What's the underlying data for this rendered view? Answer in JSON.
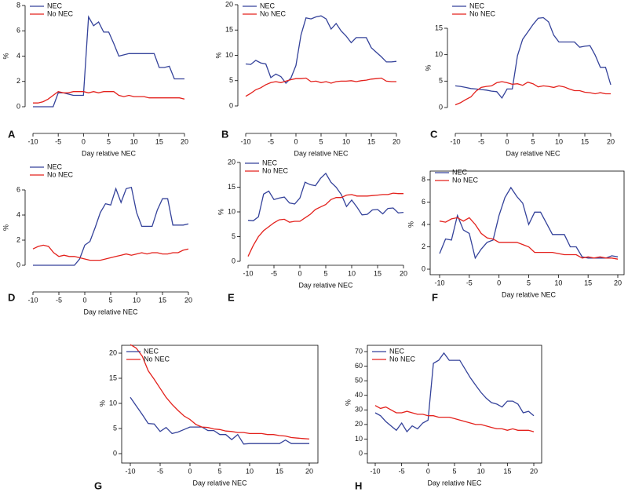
{
  "chart_data": [
    {
      "type": "line",
      "panel": "A",
      "xlabel": "Day relative NEC",
      "ylabel": "%",
      "legend": "upper left",
      "x": [
        -10,
        -9,
        -8,
        -7,
        -6,
        -5,
        -4,
        -3,
        -2,
        -1,
        0,
        1,
        2,
        3,
        4,
        5,
        6,
        7,
        8,
        9,
        10,
        11,
        12,
        13,
        14,
        15,
        16,
        17,
        18,
        19,
        20
      ],
      "xlim": [
        -10,
        20
      ],
      "xticks": [
        -10,
        -5,
        0,
        5,
        10,
        15,
        20
      ],
      "ylim": [
        0,
        8
      ],
      "yticks": [
        0,
        2,
        4,
        6,
        8
      ],
      "series": [
        {
          "name": "NEC",
          "color": "#34429a",
          "values": [
            0,
            0,
            0,
            0,
            0,
            1.1,
            1.1,
            1.0,
            0.9,
            0.9,
            0.9,
            7.1,
            6.4,
            6.7,
            5.9,
            5.9,
            5.0,
            4.0,
            4.1,
            4.2,
            4.2,
            4.2,
            4.2,
            4.2,
            4.2,
            3.1,
            3.1,
            3.2,
            2.2,
            2.2,
            2.2
          ]
        },
        {
          "name": "No NEC",
          "color": "#e3211c",
          "values": [
            0.3,
            0.3,
            0.4,
            0.6,
            0.9,
            1.2,
            1.1,
            1.1,
            1.2,
            1.2,
            1.2,
            1.1,
            1.2,
            1.1,
            1.2,
            1.2,
            1.2,
            0.9,
            0.8,
            0.9,
            0.8,
            0.8,
            0.8,
            0.7,
            0.7,
            0.7,
            0.7,
            0.7,
            0.7,
            0.7,
            0.6
          ]
        }
      ]
    },
    {
      "type": "line",
      "panel": "B",
      "xlabel": "Day relative NEC",
      "ylabel": "%",
      "legend": "upper left",
      "x": [
        -10,
        -9,
        -8,
        -7,
        -6,
        -5,
        -4,
        -3,
        -2,
        -1,
        0,
        1,
        2,
        3,
        4,
        5,
        6,
        7,
        8,
        9,
        10,
        11,
        12,
        13,
        14,
        15,
        16,
        17,
        18,
        19,
        20
      ],
      "xlim": [
        -10,
        20
      ],
      "xticks": [
        -10,
        -5,
        0,
        5,
        10,
        15,
        20
      ],
      "ylim": [
        0,
        20
      ],
      "yticks": [
        0,
        5,
        10,
        15,
        20
      ],
      "series": [
        {
          "name": "NEC",
          "color": "#34429a",
          "values": [
            8.3,
            8.2,
            9.0,
            8.5,
            8.3,
            5.6,
            6.3,
            5.8,
            4.5,
            5.5,
            8.0,
            14.0,
            17.4,
            17.2,
            17.6,
            17.8,
            17.2,
            15.2,
            16.3,
            14.8,
            13.8,
            12.5,
            13.5,
            13.5,
            13.5,
            11.5,
            10.6,
            9.7,
            8.7,
            8.7,
            8.8
          ]
        },
        {
          "name": "No NEC",
          "color": "#e3211c",
          "values": [
            1.9,
            2.5,
            3.2,
            3.6,
            4.2,
            4.6,
            4.8,
            4.6,
            4.9,
            5.2,
            5.4,
            5.4,
            5.5,
            4.8,
            4.9,
            4.6,
            4.8,
            4.5,
            4.8,
            4.9,
            4.9,
            5.0,
            4.8,
            5.0,
            5.1,
            5.3,
            5.4,
            5.5,
            4.9,
            4.8,
            4.8
          ]
        }
      ]
    },
    {
      "type": "line",
      "panel": "C",
      "xlabel": "Day relative NEC",
      "ylabel": "%",
      "legend": "upper left",
      "x": [
        -10,
        -9,
        -8,
        -7,
        -6,
        -5,
        -4,
        -3,
        -2,
        -1,
        0,
        1,
        2,
        3,
        4,
        5,
        6,
        7,
        8,
        9,
        10,
        11,
        12,
        13,
        14,
        15,
        16,
        17,
        18,
        19,
        20
      ],
      "xlim": [
        -10,
        20
      ],
      "xticks": [
        -10,
        -5,
        0,
        5,
        10,
        15,
        20
      ],
      "ylim": [
        0,
        15
      ],
      "yticks": [
        0,
        5,
        10,
        15
      ],
      "series": [
        {
          "name": "NEC",
          "color": "#34429a",
          "values": [
            4.1,
            4.0,
            3.8,
            3.6,
            3.5,
            3.4,
            3.3,
            3.1,
            3.0,
            1.8,
            3.5,
            3.5,
            9.8,
            12.9,
            14.3,
            15.7,
            16.9,
            17.0,
            16.2,
            13.7,
            12.4,
            12.4,
            12.4,
            12.4,
            11.4,
            11.6,
            11.7,
            9.9,
            7.6,
            7.6,
            4.3
          ]
        },
        {
          "name": "No NEC",
          "color": "#e3211c",
          "values": [
            0.5,
            0.9,
            1.5,
            2.0,
            3.1,
            3.8,
            4.0,
            4.1,
            4.7,
            4.9,
            4.7,
            4.4,
            4.5,
            4.2,
            4.8,
            4.5,
            3.9,
            4.1,
            4.0,
            3.8,
            4.1,
            3.9,
            3.5,
            3.2,
            3.2,
            2.9,
            2.8,
            2.6,
            2.8,
            2.6,
            2.6
          ]
        }
      ]
    },
    {
      "type": "line",
      "panel": "D",
      "xlabel": "Day relative NEC",
      "ylabel": "%",
      "legend": "upper left",
      "x": [
        -10,
        -9,
        -8,
        -7,
        -6,
        -5,
        -4,
        -3,
        -2,
        -1,
        0,
        1,
        2,
        3,
        4,
        5,
        6,
        7,
        8,
        9,
        10,
        11,
        12,
        13,
        14,
        15,
        16,
        17,
        18,
        19,
        20
      ],
      "xlim": [
        -10,
        20
      ],
      "xticks": [
        -10,
        -5,
        0,
        5,
        10,
        15,
        20
      ],
      "ylim": [
        0,
        6
      ],
      "yticks": [
        0,
        2,
        4,
        6
      ],
      "series": [
        {
          "name": "NEC",
          "color": "#34429a",
          "values": [
            0,
            0,
            0,
            0,
            0,
            0,
            0,
            0,
            0,
            0.5,
            1.6,
            1.9,
            3.0,
            4.2,
            4.9,
            4.8,
            6.1,
            5.0,
            6.1,
            6.2,
            4.2,
            3.1,
            3.1,
            3.1,
            4.4,
            5.3,
            5.3,
            3.2,
            3.2,
            3.2,
            3.3
          ]
        },
        {
          "name": "No NEC",
          "color": "#e3211c",
          "values": [
            1.3,
            1.5,
            1.6,
            1.5,
            1.0,
            0.7,
            0.8,
            0.7,
            0.7,
            0.6,
            0.5,
            0.4,
            0.4,
            0.4,
            0.5,
            0.6,
            0.7,
            0.8,
            0.9,
            0.8,
            0.9,
            1.0,
            0.9,
            1.0,
            1.0,
            0.9,
            0.9,
            1.0,
            1.0,
            1.2,
            1.3
          ]
        }
      ]
    },
    {
      "type": "line",
      "panel": "E",
      "xlabel": "Day relative NEC",
      "ylabel": "%",
      "legend": "upper left",
      "x": [
        -10,
        -9,
        -8,
        -7,
        -6,
        -5,
        -4,
        -3,
        -2,
        -1,
        0,
        1,
        2,
        3,
        4,
        5,
        6,
        7,
        8,
        9,
        10,
        11,
        12,
        13,
        14,
        15,
        16,
        17,
        18,
        19,
        20
      ],
      "xlim": [
        -10,
        20
      ],
      "xticks": [
        -10,
        -5,
        0,
        5,
        10,
        15,
        20
      ],
      "ylim": [
        0,
        20
      ],
      "yticks": [
        0,
        5,
        10,
        15,
        20
      ],
      "series": [
        {
          "name": "NEC",
          "color": "#34429a",
          "values": [
            8.3,
            8.2,
            9.0,
            13.6,
            14.2,
            12.5,
            12.8,
            13.0,
            11.8,
            11.6,
            12.8,
            16.0,
            15.5,
            15.3,
            16.8,
            17.8,
            16.0,
            15.0,
            13.5,
            11.1,
            12.4,
            11.0,
            9.4,
            9.5,
            10.4,
            10.5,
            9.6,
            10.7,
            10.8,
            9.8,
            9.9
          ]
        },
        {
          "name": "No NEC",
          "color": "#e3211c",
          "values": [
            1.0,
            3.2,
            5.0,
            6.2,
            7.0,
            7.8,
            8.4,
            8.5,
            7.9,
            8.1,
            8.1,
            8.8,
            9.5,
            10.5,
            11.0,
            11.5,
            12.5,
            12.9,
            12.9,
            13.4,
            13.5,
            13.2,
            13.2,
            13.2,
            13.3,
            13.4,
            13.5,
            13.5,
            13.8,
            13.7,
            13.7
          ]
        }
      ]
    },
    {
      "type": "line",
      "panel": "F",
      "xlabel": "Day relative NEC",
      "ylabel": "%",
      "legend": "upper left",
      "x": [
        -10,
        -9,
        -8,
        -7,
        -6,
        -5,
        -4,
        -3,
        -2,
        -1,
        0,
        1,
        2,
        3,
        4,
        5,
        6,
        7,
        8,
        9,
        10,
        11,
        12,
        13,
        14,
        15,
        16,
        17,
        18,
        19,
        20
      ],
      "xlim": [
        -10,
        20
      ],
      "xticks": [
        -10,
        -5,
        0,
        5,
        10,
        15,
        20
      ],
      "ylim": [
        0,
        8
      ],
      "yticks": [
        0,
        2,
        4,
        6,
        8
      ],
      "series": [
        {
          "name": "NEC",
          "color": "#34429a",
          "values": [
            1.4,
            2.7,
            2.6,
            4.8,
            3.5,
            3.2,
            1.0,
            1.8,
            2.4,
            2.6,
            4.8,
            6.4,
            7.3,
            6.5,
            5.9,
            4.0,
            5.1,
            5.1,
            4.1,
            3.1,
            3.1,
            3.1,
            2.0,
            2.0,
            1.1,
            1.0,
            1.0,
            1.0,
            1.0,
            1.2,
            1.1
          ]
        },
        {
          "name": "No NEC",
          "color": "#e3211c",
          "values": [
            4.3,
            4.2,
            4.5,
            4.6,
            4.3,
            4.6,
            4.0,
            3.2,
            2.8,
            2.7,
            2.4,
            2.4,
            2.4,
            2.4,
            2.2,
            2.0,
            1.5,
            1.5,
            1.5,
            1.5,
            1.4,
            1.3,
            1.3,
            1.3,
            1.0,
            1.1,
            1.0,
            1.1,
            1.0,
            1.0,
            0.9
          ]
        }
      ]
    },
    {
      "type": "line",
      "panel": "G",
      "xlabel": "Day relative NEC",
      "ylabel": "%",
      "legend": "upper left",
      "x": [
        -10,
        -9,
        -8,
        -7,
        -6,
        -5,
        -4,
        -3,
        -2,
        -1,
        0,
        1,
        2,
        3,
        4,
        5,
        6,
        7,
        8,
        9,
        10,
        11,
        12,
        13,
        14,
        15,
        16,
        17,
        18,
        19,
        20
      ],
      "xlim": [
        -10,
        20
      ],
      "xticks": [
        -10,
        -5,
        0,
        5,
        10,
        15,
        20
      ],
      "ylim": [
        0,
        20
      ],
      "yticks": [
        0,
        5,
        10,
        15,
        20
      ],
      "series": [
        {
          "name": "NEC",
          "color": "#34429a",
          "values": [
            11.2,
            9.5,
            7.8,
            6.0,
            5.9,
            4.4,
            5.2,
            4.0,
            4.3,
            4.8,
            5.3,
            5.3,
            5.3,
            4.6,
            4.6,
            3.8,
            3.8,
            2.8,
            3.8,
            1.9,
            2.0,
            2.0,
            2.0,
            2.0,
            2.0,
            2.0,
            2.7,
            2.0,
            2.0,
            2.0,
            2.0
          ]
        },
        {
          "name": "No NEC",
          "color": "#e3211c",
          "values": [
            21.7,
            21.0,
            19.4,
            16.5,
            14.8,
            13.0,
            11.2,
            9.8,
            8.6,
            7.5,
            6.8,
            5.8,
            5.3,
            5.2,
            4.9,
            4.8,
            4.5,
            4.4,
            4.2,
            4.2,
            4.0,
            4.0,
            4.0,
            3.8,
            3.8,
            3.6,
            3.5,
            3.2,
            3.1,
            3.0,
            2.9
          ]
        }
      ]
    },
    {
      "type": "line",
      "panel": "H",
      "xlabel": "Day relative NEC",
      "ylabel": "%",
      "legend": "upper left",
      "x": [
        -10,
        -9,
        -8,
        -7,
        -6,
        -5,
        -4,
        -3,
        -2,
        -1,
        0,
        1,
        2,
        3,
        4,
        5,
        6,
        7,
        8,
        9,
        10,
        11,
        12,
        13,
        14,
        15,
        16,
        17,
        18,
        19,
        20
      ],
      "xlim": [
        -10,
        20
      ],
      "xticks": [
        -10,
        -5,
        0,
        5,
        10,
        15,
        20
      ],
      "ylim": [
        0,
        70
      ],
      "yticks": [
        0,
        10,
        20,
        30,
        40,
        50,
        60,
        70
      ],
      "series": [
        {
          "name": "NEC",
          "color": "#34429a",
          "values": [
            28,
            26,
            22,
            19,
            16,
            21,
            15,
            19,
            17,
            21,
            23,
            62,
            64,
            69,
            64,
            64,
            64,
            58,
            52,
            47,
            42,
            38,
            35,
            34,
            32,
            36,
            36,
            34,
            28,
            29,
            26
          ]
        },
        {
          "name": "No NEC",
          "color": "#e3211c",
          "values": [
            33,
            31,
            32,
            30,
            28,
            28,
            29,
            28,
            27,
            27,
            26,
            26,
            25,
            25,
            25,
            24,
            23,
            22,
            21,
            20,
            20,
            19,
            18,
            17,
            17,
            16,
            17,
            16,
            16,
            16,
            15
          ]
        }
      ]
    }
  ]
}
